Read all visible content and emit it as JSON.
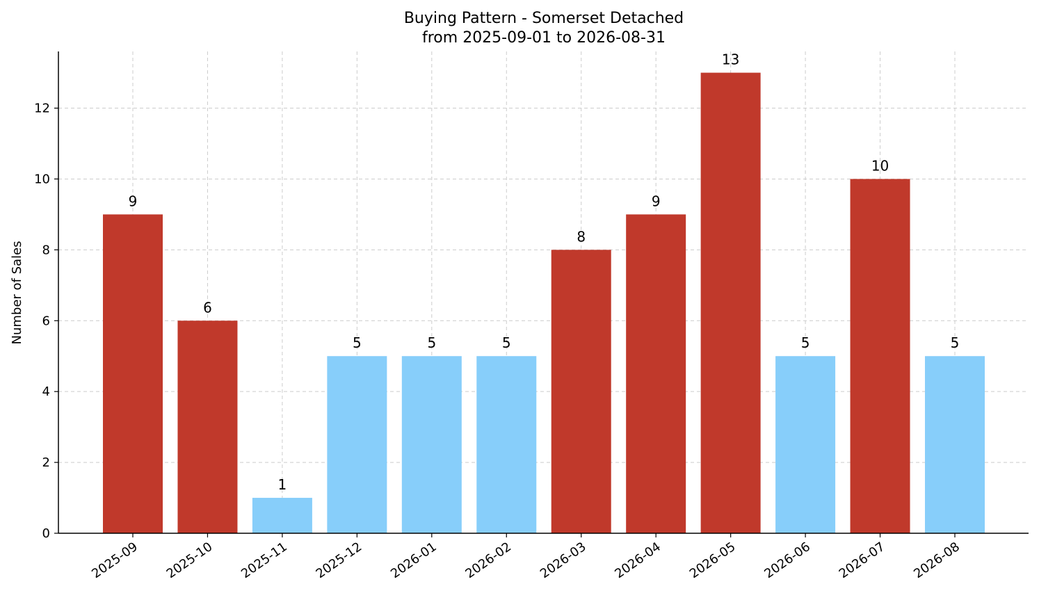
{
  "chart_data": {
    "type": "bar",
    "title": "Buying Pattern - Somerset Detached",
    "subtitle": "from 2025-09-01 to 2026-08-31",
    "xlabel": "",
    "ylabel": "Number of Sales",
    "ylim": [
      0,
      13.6
    ],
    "yticks": [
      0,
      2,
      4,
      6,
      8,
      10,
      12
    ],
    "grid": true,
    "categories": [
      "2025-09",
      "2025-10",
      "2025-11",
      "2025-12",
      "2026-01",
      "2026-02",
      "2026-03",
      "2026-04",
      "2026-05",
      "2026-06",
      "2026-07",
      "2026-08"
    ],
    "values": [
      9,
      6,
      1,
      5,
      5,
      5,
      8,
      9,
      13,
      5,
      10,
      5
    ],
    "bar_colors": [
      "#c0392b",
      "#c0392b",
      "#87cefa",
      "#87cefa",
      "#87cefa",
      "#87cefa",
      "#c0392b",
      "#c0392b",
      "#c0392b",
      "#87cefa",
      "#c0392b",
      "#87cefa"
    ]
  }
}
